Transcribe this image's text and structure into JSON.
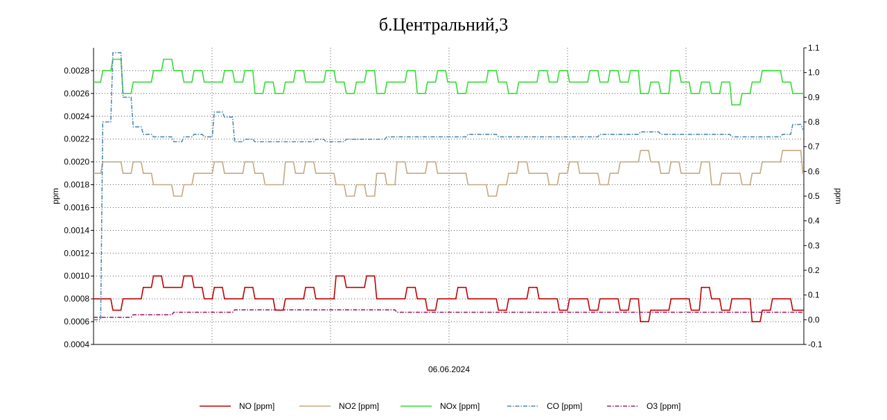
{
  "chart_data": {
    "type": "line",
    "title": "б.Центральний,3",
    "xlabel": "06.06.2024",
    "ylabel_left": "ppm",
    "ylabel_right": "ppm",
    "ylim_left": [
      0.0004,
      0.003
    ],
    "ylim_right": [
      -0.1,
      1.1
    ],
    "yticks_left": [
      "0.0004",
      "0.0006",
      "0.0008",
      "0.0010",
      "0.0012",
      "0.0014",
      "0.0016",
      "0.0018",
      "0.0020",
      "0.0022",
      "0.0024",
      "0.0026",
      "0.0028"
    ],
    "yticks_right": [
      "-0.1",
      "0.0",
      "0.1",
      "0.2",
      "0.3",
      "0.4",
      "0.5",
      "0.6",
      "0.7",
      "0.8",
      "0.9",
      "1.0",
      "1.1"
    ],
    "grid": true,
    "legend_position": "bottom",
    "series": [
      {
        "name": "NO [ppm]",
        "axis": "left",
        "color": "#c00000",
        "style": "solid",
        "values": [
          0.0008,
          0.0008,
          0.0007,
          0.0008,
          0.0008,
          0.0009,
          0.001,
          0.0009,
          0.0009,
          0.001,
          0.0009,
          0.0008,
          0.0009,
          0.0008,
          0.0008,
          0.0009,
          0.0008,
          0.0008,
          0.0007,
          0.0008,
          0.0008,
          0.0009,
          0.0008,
          0.0008,
          0.001,
          0.0009,
          0.0009,
          0.001,
          0.0008,
          0.0008,
          0.0008,
          0.0009,
          0.0008,
          0.0007,
          0.0008,
          0.0008,
          0.0009,
          0.0008,
          0.0008,
          0.0008,
          0.0007,
          0.0008,
          0.0008,
          0.0009,
          0.0008,
          0.0008,
          0.0007,
          0.0008,
          0.0008,
          0.0007,
          0.0008,
          0.0008,
          0.0007,
          0.0008,
          0.0006,
          0.0007,
          0.0007,
          0.0008,
          0.0008,
          0.0007,
          0.0009,
          0.0008,
          0.0007,
          0.0008,
          0.0008,
          0.0006,
          0.0007,
          0.0008,
          0.0008,
          0.0007,
          0.0007
        ]
      },
      {
        "name": "NO2 [ppm]",
        "axis": "left",
        "color": "#c4a882",
        "style": "solid",
        "values": [
          0.0019,
          0.002,
          0.002,
          0.0019,
          0.002,
          0.0019,
          0.0018,
          0.0018,
          0.0017,
          0.0018,
          0.0019,
          0.0019,
          0.002,
          0.0019,
          0.0019,
          0.002,
          0.0019,
          0.0018,
          0.0018,
          0.002,
          0.0019,
          0.002,
          0.0019,
          0.0019,
          0.0018,
          0.0017,
          0.0018,
          0.0017,
          0.0019,
          0.0018,
          0.002,
          0.0019,
          0.0019,
          0.002,
          0.0019,
          0.0019,
          0.0019,
          0.0018,
          0.0018,
          0.0017,
          0.0018,
          0.0019,
          0.002,
          0.0019,
          0.0019,
          0.0018,
          0.0019,
          0.002,
          0.0019,
          0.0019,
          0.0018,
          0.0019,
          0.002,
          0.002,
          0.0021,
          0.002,
          0.0019,
          0.002,
          0.0019,
          0.0019,
          0.002,
          0.0018,
          0.0019,
          0.0019,
          0.0018,
          0.0019,
          0.002,
          0.002,
          0.0021,
          0.0021,
          0.0019
        ]
      },
      {
        "name": "NOx [ppm]",
        "axis": "left",
        "color": "#33dd33",
        "style": "solid",
        "values": [
          0.0027,
          0.0028,
          0.0029,
          0.0026,
          0.0027,
          0.0027,
          0.0028,
          0.0029,
          0.0028,
          0.0027,
          0.0028,
          0.0027,
          0.0027,
          0.0028,
          0.0027,
          0.0028,
          0.0026,
          0.0027,
          0.0026,
          0.0027,
          0.0028,
          0.0027,
          0.0027,
          0.0028,
          0.0027,
          0.0026,
          0.0027,
          0.0028,
          0.0026,
          0.0027,
          0.0027,
          0.0028,
          0.0026,
          0.0027,
          0.0028,
          0.0027,
          0.0026,
          0.0027,
          0.0027,
          0.0028,
          0.0027,
          0.0026,
          0.0027,
          0.0027,
          0.0028,
          0.0027,
          0.0028,
          0.0027,
          0.0027,
          0.0028,
          0.0027,
          0.0028,
          0.0027,
          0.0028,
          0.0026,
          0.0027,
          0.0026,
          0.0028,
          0.0027,
          0.0026,
          0.0027,
          0.0026,
          0.0027,
          0.0025,
          0.0026,
          0.0027,
          0.0028,
          0.0028,
          0.0027,
          0.0026,
          0.0026
        ]
      },
      {
        "name": "CO [ppm]",
        "axis": "right",
        "color": "#4f88b0",
        "style": "dashdot",
        "values": [
          0.0,
          0.8,
          1.08,
          0.9,
          0.78,
          0.75,
          0.74,
          0.74,
          0.72,
          0.74,
          0.75,
          0.74,
          0.84,
          0.82,
          0.72,
          0.73,
          0.72,
          0.72,
          0.72,
          0.72,
          0.72,
          0.72,
          0.73,
          0.72,
          0.72,
          0.73,
          0.73,
          0.73,
          0.73,
          0.74,
          0.74,
          0.74,
          0.74,
          0.74,
          0.74,
          0.74,
          0.74,
          0.75,
          0.75,
          0.75,
          0.74,
          0.74,
          0.74,
          0.74,
          0.74,
          0.74,
          0.74,
          0.74,
          0.74,
          0.74,
          0.75,
          0.75,
          0.75,
          0.75,
          0.76,
          0.76,
          0.75,
          0.75,
          0.75,
          0.75,
          0.75,
          0.75,
          0.75,
          0.74,
          0.74,
          0.74,
          0.74,
          0.74,
          0.75,
          0.79,
          0.77
        ]
      },
      {
        "name": "O3 [ppm]",
        "axis": "right",
        "color": "#a0206a",
        "style": "dashdot",
        "values": [
          0.01,
          0.01,
          0.01,
          0.01,
          0.02,
          0.02,
          0.02,
          0.02,
          0.03,
          0.03,
          0.03,
          0.03,
          0.03,
          0.03,
          0.04,
          0.04,
          0.04,
          0.04,
          0.04,
          0.04,
          0.04,
          0.04,
          0.04,
          0.04,
          0.04,
          0.04,
          0.04,
          0.04,
          0.04,
          0.04,
          0.03,
          0.03,
          0.03,
          0.03,
          0.03,
          0.03,
          0.03,
          0.03,
          0.03,
          0.03,
          0.03,
          0.03,
          0.03,
          0.03,
          0.03,
          0.03,
          0.03,
          0.03,
          0.03,
          0.03,
          0.03,
          0.03,
          0.03,
          0.03,
          0.03,
          0.03,
          0.03,
          0.03,
          0.03,
          0.03,
          0.03,
          0.03,
          0.03,
          0.03,
          0.03,
          0.03,
          0.03,
          0.03,
          0.03,
          0.03,
          0.03
        ]
      }
    ]
  }
}
